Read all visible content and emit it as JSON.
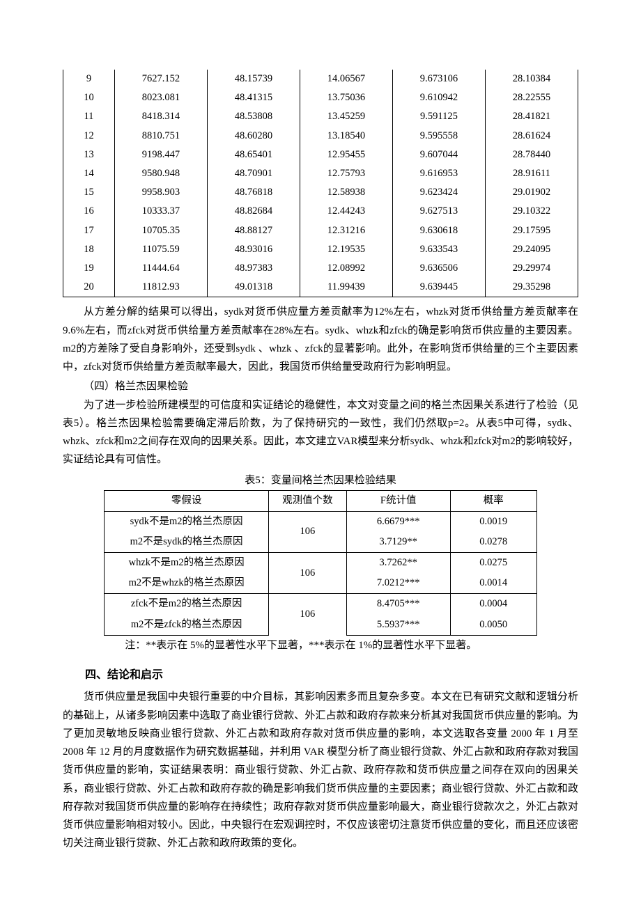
{
  "table1": {
    "type": "table",
    "background_color": "#ffffff",
    "border_color": "#000000",
    "font_size": 14.5,
    "col_widths_pct": [
      10,
      18,
      18,
      18,
      18,
      18
    ],
    "rows": [
      [
        "9",
        "7627.152",
        "48.15739",
        "14.06567",
        "9.673106",
        "28.10384"
      ],
      [
        "10",
        "8023.081",
        "48.41315",
        "13.75036",
        "9.610942",
        "28.22555"
      ],
      [
        "11",
        "8418.314",
        "48.53808",
        "13.45259",
        "9.591125",
        "28.41821"
      ],
      [
        "12",
        "8810.751",
        "48.60280",
        "13.18540",
        "9.595558",
        "28.61624"
      ],
      [
        "13",
        "9198.447",
        "48.65401",
        "12.95455",
        "9.607044",
        "28.78440"
      ],
      [
        "14",
        "9580.948",
        "48.70901",
        "12.75793",
        "9.616953",
        "28.91611"
      ],
      [
        "15",
        "9958.903",
        "48.76818",
        "12.58938",
        "9.623424",
        "29.01902"
      ],
      [
        "16",
        "10333.37",
        "48.82684",
        "12.44243",
        "9.627513",
        "29.10322"
      ],
      [
        "17",
        "10705.35",
        "48.88127",
        "12.31216",
        "9.630618",
        "29.17595"
      ],
      [
        "18",
        "11075.59",
        "48.93016",
        "12.19535",
        "9.633543",
        "29.24095"
      ],
      [
        "19",
        "11444.64",
        "48.97383",
        "12.08992",
        "9.636506",
        "29.29974"
      ],
      [
        "20",
        "11812.93",
        "49.01318",
        "11.99439",
        "9.639445",
        "29.35298"
      ]
    ]
  },
  "para1": "从方差分解的结果可以得出，sydk对货币供应量方差贡献率为12%左右，whzk对货币供给量方差贡献率在9.6%左右，而zfck对货币供给量方差贡献率在28%左右。sydk、whzk和zfck的确是影响货币供应量的主要因素。m2的方差除了受自身影响外，还受到sydk 、whzk 、zfck的显著影响。此外，在影响货币供给量的三个主要因素中，zfck对货币供给量方差贡献率最大，因此，我国货币供给量受政府行为影响明显。",
  "sub4_title": "（四）格兰杰因果检验",
  "para2": "为了进一步检验所建模型的可信度和实证结论的稳健性，本文对变量之间的格兰杰因果关系进行了检验（见表5）。格兰杰因果检验需要确定滞后阶数，为了保持研究的一致性，我们仍然取p=2。从表5中可得，sydk、whzk、zfck和m2之间存在双向的因果关系。因此，本文建立VAR模型来分析sydk、whzk和zfck对m2的影响较好，实证结论具有可信性。",
  "table2": {
    "type": "table",
    "caption": "表5：变量间格兰杰因果检验结果",
    "background_color": "#ffffff",
    "border_color": "#000000",
    "font_size": 14.5,
    "columns": [
      "零假设",
      "观测值个数",
      "F统计值",
      "概率"
    ],
    "col_widths_pct": [
      38,
      18,
      24,
      20
    ],
    "groups": [
      {
        "obs": "106",
        "rows": [
          {
            "h": "sydk不是m2的格兰杰原因",
            "f": "6.6679***",
            "p": "0.0019"
          },
          {
            "h": "m2不是sydk的格兰杰原因",
            "f": "3.7129**",
            "p": "0.0278"
          }
        ]
      },
      {
        "obs": "106",
        "rows": [
          {
            "h": "whzk不是m2的格兰杰原因",
            "f": "3.7262**",
            "p": "0.0275"
          },
          {
            "h": "m2不是whzk的格兰杰原因",
            "f": "7.0212***",
            "p": "0.0014"
          }
        ]
      },
      {
        "obs": "106",
        "rows": [
          {
            "h": "zfck不是m2的格兰杰原因",
            "f": "8.4705***",
            "p": "0.0004"
          },
          {
            "h": "m2不是zfck的格兰杰原因",
            "f": "5.5937***",
            "p": "0.0050"
          }
        ]
      }
    ],
    "note": "注：**表示在 5%的显著性水平下显著，***表示在 1%的显著性水平下显著。"
  },
  "section4_title": "四、结论和启示",
  "para3": "货币供应量是我国中央银行重要的中介目标，其影响因素多而且复杂多变。本文在已有研究文献和逻辑分析的基础上，从诸多影响因素中选取了商业银行贷款、外汇占款和政府存款来分析其对我国货币供应量的影响。为了更加灵敏地反映商业银行贷款、外汇占款和政府存款对货币供应量的影响，本文选取各变量 2000 年 1 月至 2008 年 12 月的月度数据作为研究数据基础，并利用 VAR 模型分析了商业银行贷款、外汇占款和政府存款对我国货币供应量的影响，实证结果表明：商业银行贷款、外汇占款、政府存款和货币供应量之间存在双向的因果关系，商业银行贷款、外汇占款和政府存款的确是影响我们货币供应量的主要因素；商业银行贷款、外汇占款和政府存款对我国货币供应量的影响存在持续性；政府存款对货币供应量影响最大，商业银行贷款次之，外汇占款对货币供应量影响相对较小。因此，中央银行在宏观调控时，不仅应该密切注意货币供应量的变化，而且还应该密切关注商业银行贷款、外汇占款和政府政策的变化。"
}
